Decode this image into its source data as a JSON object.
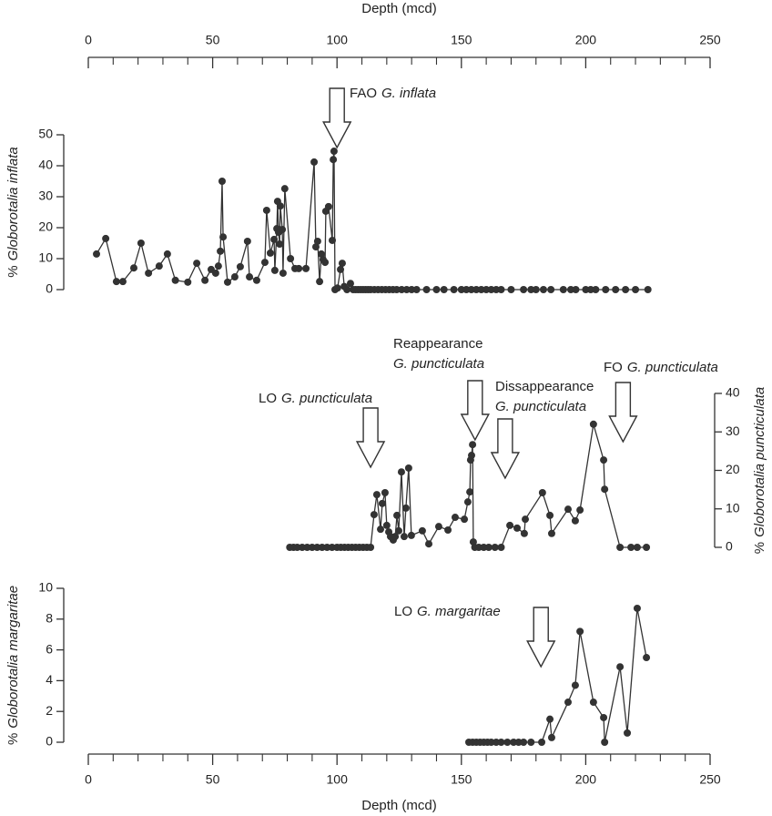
{
  "chart_data": [
    {
      "type": "line",
      "xlabel": "Depth (mcd)",
      "xaxis": "top",
      "xlim": [
        0,
        250
      ],
      "xticks": [
        0,
        50,
        100,
        150,
        200,
        250
      ],
      "xminorticks": [
        10,
        20,
        30,
        40,
        60,
        70,
        80,
        90,
        110,
        120,
        130,
        140,
        160,
        170,
        180,
        190,
        210,
        220,
        230,
        240
      ],
      "ylabel": {
        "prefix": "%",
        "italic": "Globorotalia inflata"
      },
      "yaxis": "left",
      "ylim": [
        0,
        50
      ],
      "yticks": [
        0,
        10,
        20,
        30,
        40,
        50
      ],
      "color": "#333333",
      "annotations": [
        {
          "depth": 100,
          "lines": [
            {
              "text": "FAO",
              "italic": "G. inflata"
            }
          ]
        }
      ],
      "x": [
        3.3,
        7,
        11.3,
        13.9,
        18.3,
        21.2,
        24.2,
        28.5,
        31.8,
        35,
        40,
        43.6,
        46.9,
        49.4,
        51.2,
        52.3,
        53.1,
        53.8,
        54.2,
        56,
        58.9,
        61.1,
        64,
        64.8,
        67.7,
        71,
        71.7,
        73.2,
        74.7,
        75,
        75.8,
        76.1,
        76.5,
        76.9,
        77.2,
        78,
        78.3,
        79,
        81.3,
        83.1,
        84.6,
        87.5,
        90.8,
        91.5,
        92.2,
        93,
        93.7,
        94.4,
        95.2,
        95.5,
        96.6,
        98.1,
        98.5,
        98.8,
        99.2,
        100.2,
        101.4,
        102.1,
        102.9,
        104,
        105.4,
        106.5,
        107.5,
        108.5,
        109.5,
        110.5,
        111.5,
        112.5,
        113.5,
        115,
        116.5,
        118,
        119.5,
        121,
        122.5,
        124,
        126,
        128,
        130,
        132,
        136,
        140,
        143,
        147,
        150,
        152,
        154,
        156,
        158,
        160,
        162,
        164,
        166,
        170,
        175,
        178,
        180,
        183,
        186,
        191,
        194,
        196,
        200,
        202,
        204,
        208,
        212,
        216,
        220,
        225
      ],
      "values": [
        11.5,
        16.5,
        2.6,
        2.6,
        7,
        15,
        5.3,
        7.6,
        11.5,
        3,
        2.4,
        8.5,
        3,
        6.5,
        5.3,
        7.6,
        12.4,
        35,
        17,
        2.4,
        4.1,
        7.4,
        15.6,
        4.1,
        3,
        8.8,
        25.6,
        11.8,
        16.2,
        6.2,
        19.7,
        28.5,
        18.5,
        14.7,
        27,
        19.4,
        5.3,
        32.6,
        10,
        6.8,
        6.8,
        6.8,
        41.2,
        13.8,
        15.6,
        2.6,
        11.5,
        9.7,
        8.8,
        25.3,
        26.8,
        15.9,
        42,
        44.7,
        0,
        0.5,
        6.5,
        8.5,
        1,
        0,
        2,
        0,
        0,
        0,
        0,
        0,
        0,
        0,
        0,
        0,
        0,
        0,
        0,
        0,
        0,
        0,
        0,
        0,
        0,
        0,
        0,
        0,
        0,
        0,
        0,
        0,
        0,
        0,
        0,
        0,
        0,
        0,
        0,
        0,
        0,
        0,
        0,
        0,
        0,
        0,
        0,
        0,
        0,
        0,
        0,
        0,
        0,
        0,
        0,
        0
      ]
    },
    {
      "type": "line",
      "xlim": [
        0,
        250
      ],
      "ylabel": {
        "prefix": "%",
        "italic": "Globorotalia puncticulata"
      },
      "yaxis": "right",
      "ylim": [
        0,
        40
      ],
      "yticks": [
        0,
        10,
        20,
        30,
        40
      ],
      "color": "#333333",
      "annotations": [
        {
          "depth": 113.5,
          "lines": [
            {
              "text": "LO",
              "italic": "G. puncticulata"
            }
          ]
        },
        {
          "depth": 155.5,
          "lines": [
            {
              "text": "Reappearance"
            },
            {
              "italic": "G. puncticulata"
            }
          ]
        },
        {
          "depth": 167.6,
          "lines": [
            {
              "text": "Dissappearance"
            },
            {
              "italic": "G. puncticulata"
            }
          ]
        },
        {
          "depth": 215,
          "lines": [
            {
              "text": "FO",
              "italic": "G. puncticulata"
            }
          ]
        }
      ],
      "x": [
        81,
        82.5,
        84,
        86,
        88,
        90,
        92,
        94,
        96,
        98,
        100,
        101.5,
        103,
        104.5,
        106,
        107.5,
        109,
        110.5,
        112,
        113.5,
        114.9,
        116,
        117.5,
        118.2,
        119.3,
        120,
        120.8,
        121.5,
        122.6,
        123.4,
        124.1,
        124.8,
        125.9,
        127,
        127.7,
        128.8,
        129.9,
        134.3,
        136.9,
        140.9,
        144.6,
        147.5,
        151.2,
        152.6,
        153.4,
        153.7,
        154.1,
        154.5,
        154.8,
        155.4,
        157,
        159,
        161,
        163.5,
        166,
        169.5,
        172.4,
        175.3,
        175.7,
        182.6,
        185.6,
        186.3,
        192.9,
        195.8,
        197.7,
        203.1,
        207.2,
        207.6,
        213.8,
        218.2,
        220.7,
        224.4
      ],
      "values": [
        0,
        0,
        0,
        0,
        0,
        0,
        0,
        0,
        0,
        0,
        0,
        0,
        0,
        0,
        0,
        0,
        0,
        0,
        0,
        0,
        8.5,
        13.7,
        4.7,
        11.4,
        14.2,
        5.7,
        4,
        2.8,
        1.9,
        2.8,
        8.3,
        4.3,
        19.6,
        2.8,
        10.2,
        20.6,
        3.1,
        4.3,
        0.9,
        5.4,
        4.5,
        7.8,
        7.3,
        11.8,
        14.4,
        22.7,
        23.9,
        26.7,
        1.4,
        0,
        0,
        0,
        0,
        0,
        0,
        5.7,
        5,
        3.6,
        7.3,
        14.2,
        8.3,
        3.6,
        9.9,
        6.9,
        9.7,
        32,
        22.7,
        15.1,
        0,
        0,
        0,
        0
      ]
    },
    {
      "type": "line",
      "xlabel": "Depth (mcd)",
      "xaxis": "bottom",
      "xlim": [
        0,
        250
      ],
      "xticks": [
        0,
        50,
        100,
        150,
        200,
        250
      ],
      "xminorticks": [
        10,
        20,
        30,
        40,
        60,
        70,
        80,
        90,
        110,
        120,
        130,
        140,
        160,
        170,
        180,
        190,
        210,
        220,
        230,
        240
      ],
      "ylabel": {
        "prefix": "%",
        "italic": "Globorotalia margaritae"
      },
      "yaxis": "left",
      "ylim": [
        0,
        10
      ],
      "yticks": [
        0,
        2,
        4,
        6,
        8,
        10
      ],
      "color": "#333333",
      "annotations": [
        {
          "depth": 182,
          "lines": [
            {
              "text": "LO",
              "italic": "G. margaritae"
            }
          ]
        }
      ],
      "x": [
        153,
        154.5,
        156,
        157.5,
        159,
        160.5,
        162,
        164,
        166,
        168.5,
        171,
        173,
        175,
        178,
        182.3,
        185.6,
        186.3,
        192.9,
        195.8,
        197.7,
        203.1,
        207.2,
        207.6,
        213.8,
        216.7,
        220.7,
        224.4
      ],
      "values": [
        0,
        0,
        0,
        0,
        0,
        0,
        0,
        0,
        0,
        0,
        0,
        0,
        0,
        0,
        0,
        1.5,
        0.3,
        2.6,
        3.7,
        7.2,
        2.6,
        1.6,
        0,
        4.9,
        0.6,
        8.7,
        5.5
      ]
    }
  ]
}
